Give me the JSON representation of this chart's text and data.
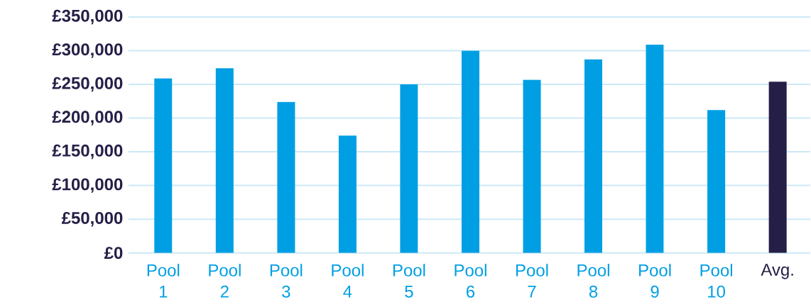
{
  "chart_data": {
    "type": "bar",
    "categories": [
      "Pool 1",
      "Pool 2",
      "Pool 3",
      "Pool 4",
      "Pool 5",
      "Pool 6",
      "Pool 7",
      "Pool 8",
      "Pool 9",
      "Pool 10",
      "Avg."
    ],
    "values": [
      259000,
      274000,
      224000,
      174000,
      250000,
      300000,
      257000,
      287000,
      309000,
      212000,
      254000
    ],
    "colors": [
      "#009fe3",
      "#009fe3",
      "#009fe3",
      "#009fe3",
      "#009fe3",
      "#009fe3",
      "#009fe3",
      "#009fe3",
      "#009fe3",
      "#009fe3",
      "#251f47"
    ],
    "ylim": [
      0,
      350000
    ],
    "yticks": [
      {
        "value": 0,
        "label": "£0"
      },
      {
        "value": 50000,
        "label": "£50,000"
      },
      {
        "value": 100000,
        "label": "£100,000"
      },
      {
        "value": 150000,
        "label": "£150,000"
      },
      {
        "value": 200000,
        "label": "£200,000"
      },
      {
        "value": 250000,
        "label": "£250,000"
      },
      {
        "value": 300000,
        "label": "£300,000"
      },
      {
        "value": 350000,
        "label": "£350,000"
      }
    ],
    "grid": "y"
  }
}
